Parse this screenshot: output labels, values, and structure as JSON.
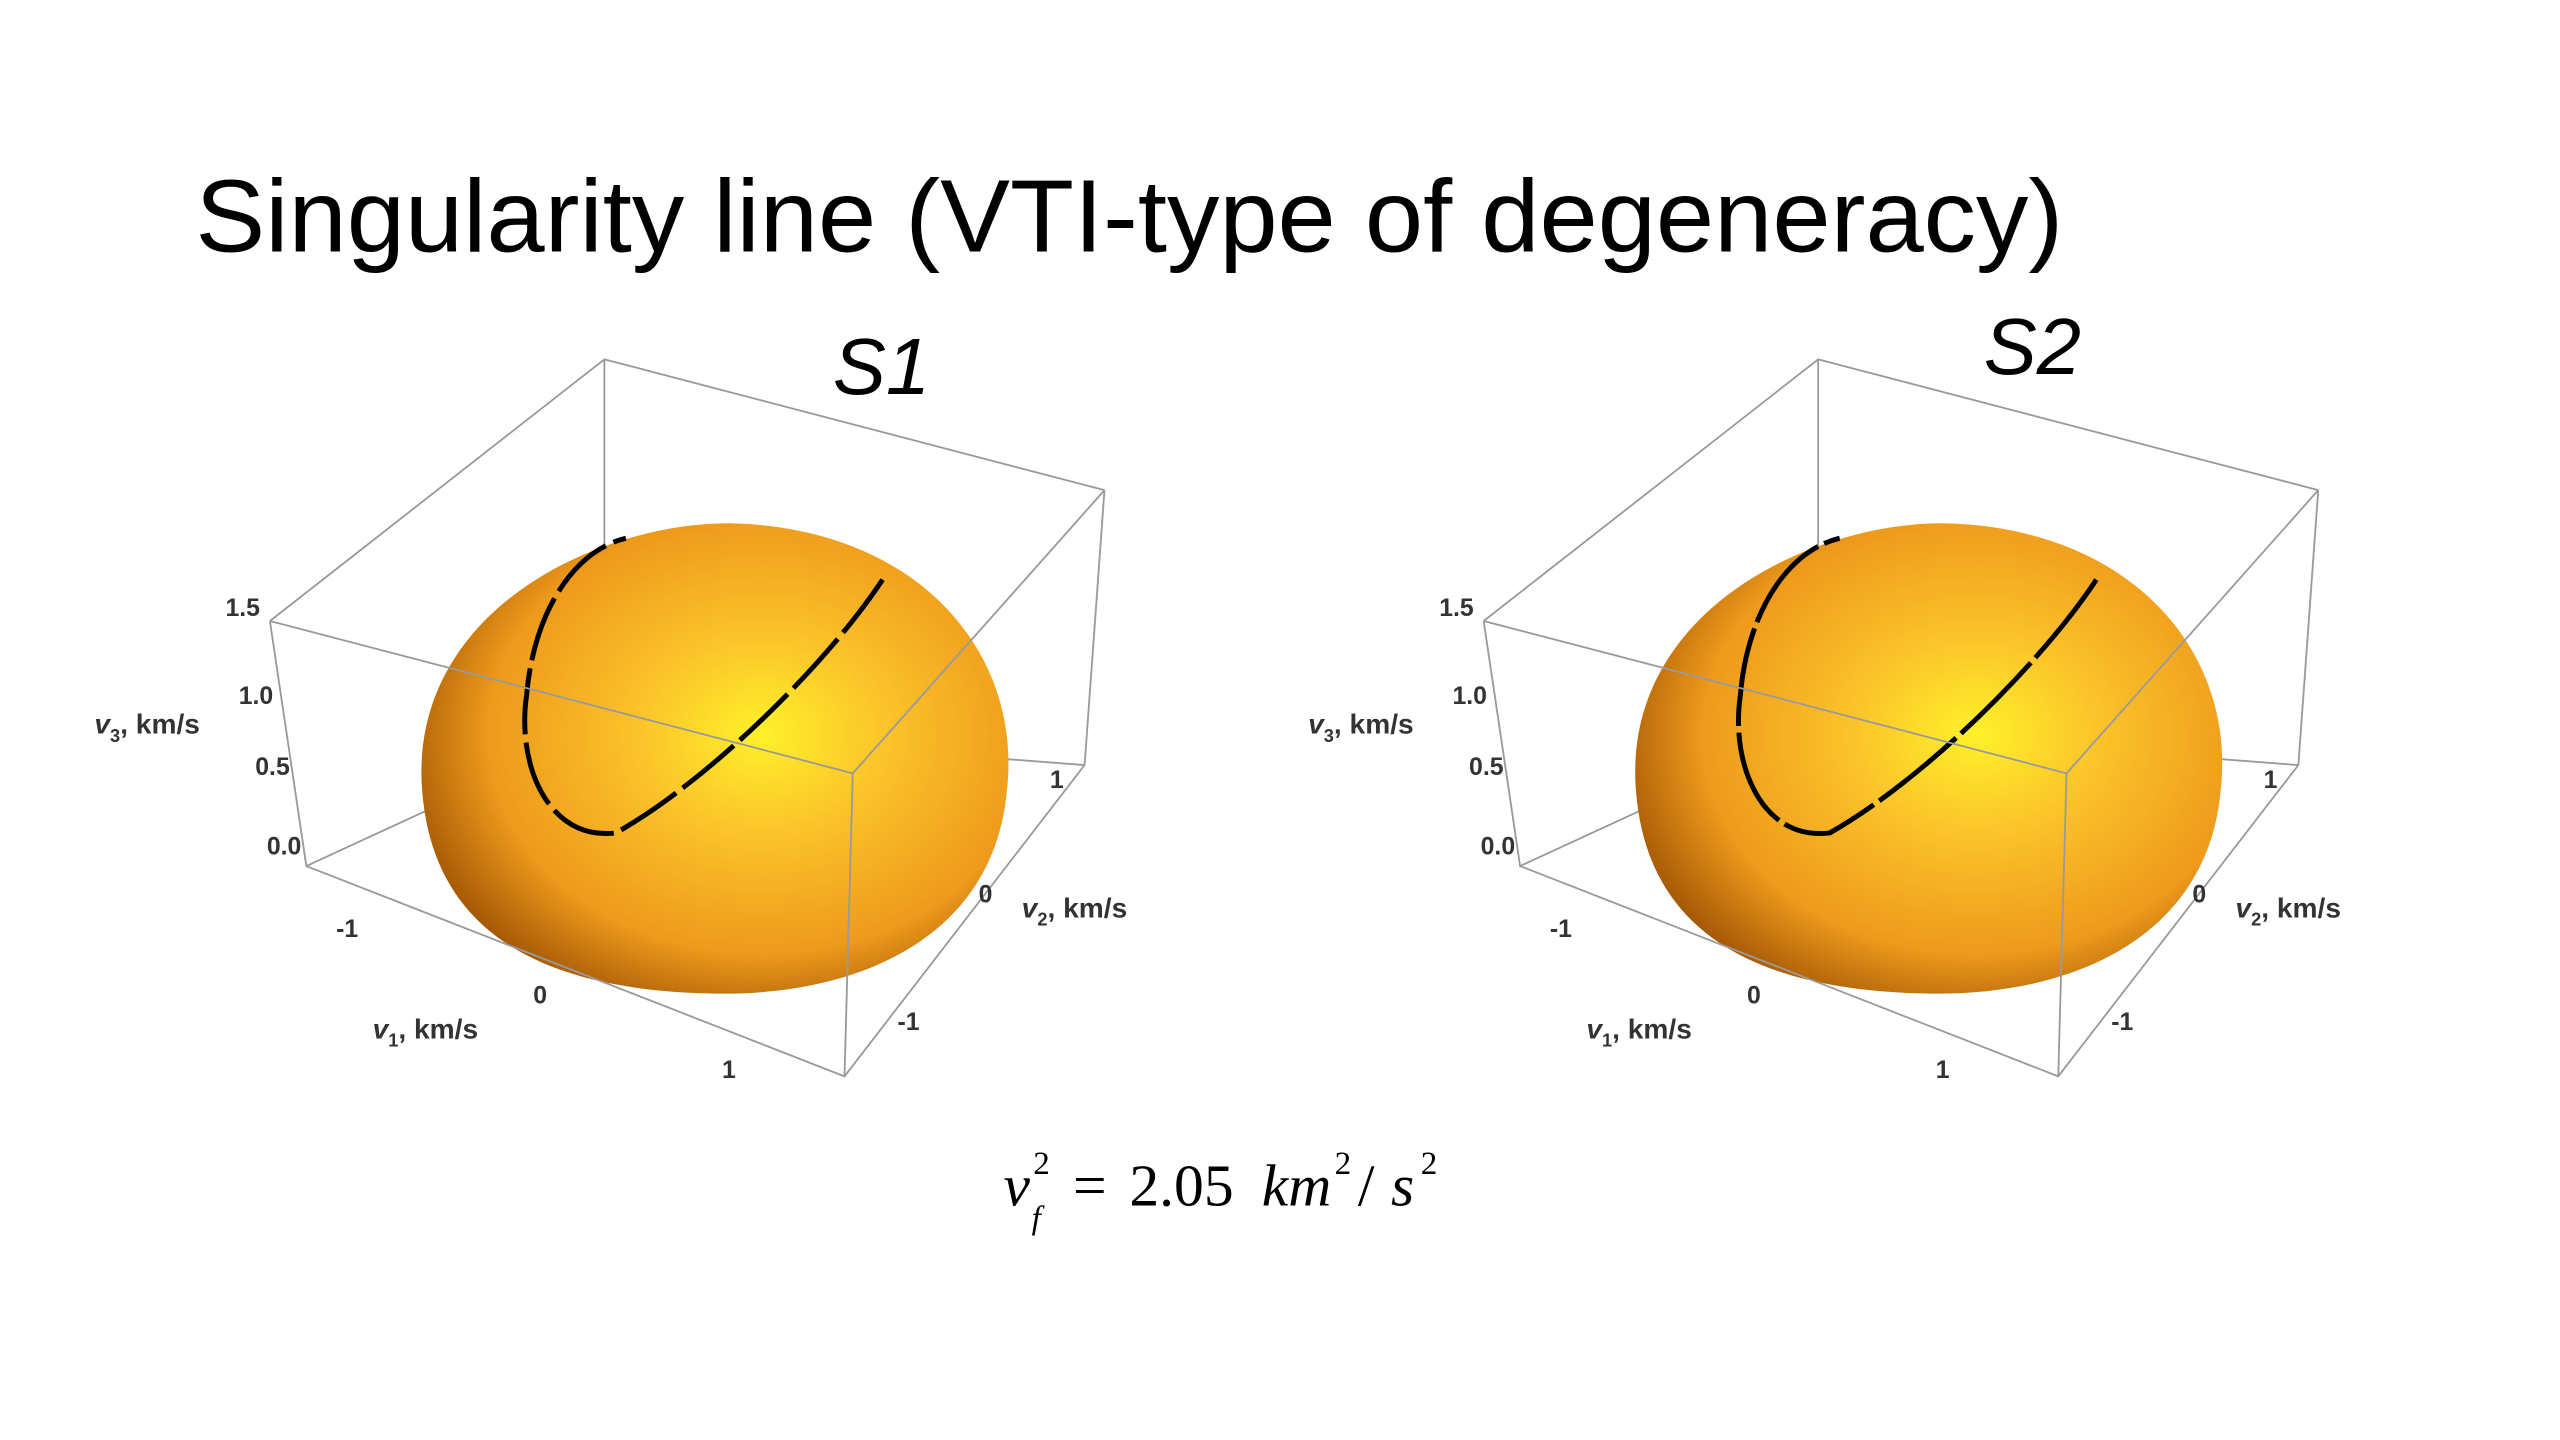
{
  "title": "Singularity line (VTI-type of degeneracy)",
  "panels": [
    {
      "label": "S1",
      "axes": {
        "v3": {
          "symbol": "v",
          "index": "3",
          "unit": ", km/s",
          "ticks": [
            "0.0",
            "0.5",
            "1.0",
            "1.5"
          ]
        },
        "v1": {
          "symbol": "v",
          "index": "1",
          "unit": ", km/s",
          "ticks": [
            "-1",
            "0",
            "1"
          ]
        },
        "v2": {
          "symbol": "v",
          "index": "2",
          "unit": ", km/s",
          "ticks": [
            "-1",
            "0",
            "1"
          ]
        }
      }
    },
    {
      "label": "S2",
      "axes": {
        "v3": {
          "symbol": "v",
          "index": "3",
          "unit": ", km/s",
          "ticks": [
            "0.0",
            "0.5",
            "1.0",
            "1.5"
          ]
        },
        "v1": {
          "symbol": "v",
          "index": "1",
          "unit": ", km/s",
          "ticks": [
            "-1",
            "0",
            "1"
          ]
        },
        "v2": {
          "symbol": "v",
          "index": "2",
          "unit": ", km/s",
          "ticks": [
            "-1",
            "0",
            "1"
          ]
        }
      }
    }
  ],
  "formula": {
    "base": "v",
    "base_sup": "2",
    "base_sub": "f",
    "equals": "=",
    "value": "2.05",
    "unit": "km",
    "unit_sup": "2",
    "slash": "/",
    "den": "s",
    "den_sup": "2"
  }
}
